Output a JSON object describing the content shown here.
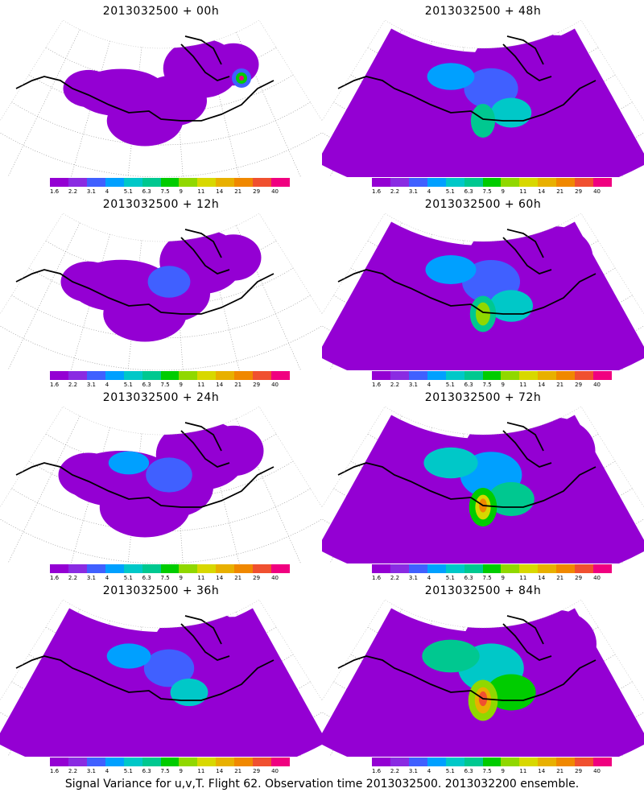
{
  "panels": [
    {
      "title": "2013032500 + 00h",
      "level": 0
    },
    {
      "title": "2013032500 + 48h",
      "level": 4
    },
    {
      "title": "2013032500 + 12h",
      "level": 1
    },
    {
      "title": "2013032500 + 60h",
      "level": 5
    },
    {
      "title": "2013032500 + 24h",
      "level": 2
    },
    {
      "title": "2013032500 + 72h",
      "level": 6
    },
    {
      "title": "2013032500 + 36h",
      "level": 3
    },
    {
      "title": "2013032500 + 84h",
      "level": 7
    }
  ],
  "colorbar": {
    "ticks": [
      "1.6",
      "2.2",
      "3.1",
      "4",
      "5.1",
      "6.3",
      "7.5",
      "9",
      "11",
      "14",
      "21",
      "29",
      "40"
    ],
    "colors": [
      "#9400d3",
      "#8a2be2",
      "#4060ff",
      "#00a0ff",
      "#00c8c8",
      "#00c890",
      "#00cc00",
      "#90d800",
      "#d8d800",
      "#e8b000",
      "#f08800",
      "#f05030",
      "#f00080"
    ]
  },
  "footer": "Signal Variance for u,v,T. Flight 62. Observation time 2013032500. 2013032200 ensemble."
}
